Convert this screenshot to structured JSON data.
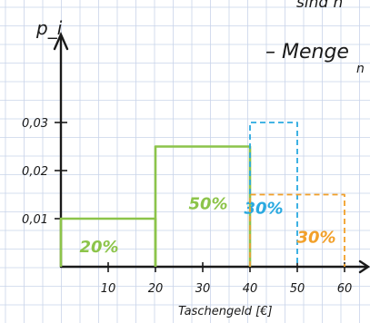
{
  "notes": {
    "line1": "sind n",
    "line2": "– Menge",
    "line3": "n"
  },
  "colors": {
    "axis": "#1a1a1a",
    "grid": "#c9d4ea",
    "green": "#8cc44a",
    "blue": "#29a9e0",
    "orange": "#f2a02a"
  },
  "chart_data": {
    "type": "bar",
    "ylabel": "p_i",
    "xlabel": "Taschengeld [€]",
    "xlim": [
      0,
      62
    ],
    "ylim": [
      0,
      0.035
    ],
    "x_ticks": [
      10,
      20,
      30,
      40,
      50,
      60
    ],
    "y_ticks": [
      {
        "value": 0.01,
        "label": "0,01"
      },
      {
        "value": 0.02,
        "label": "0,02"
      },
      {
        "value": 0.03,
        "label": "0,03"
      }
    ],
    "bars": [
      {
        "x0": 0,
        "x1": 20,
        "height": 0.01,
        "label": "20%",
        "color": "green",
        "style": "solid"
      },
      {
        "x0": 20,
        "x1": 40,
        "height": 0.025,
        "label": "50%",
        "color": "green",
        "style": "solid"
      },
      {
        "x0": 40,
        "x1": 50,
        "height": 0.03,
        "label": "30%",
        "color": "blue",
        "style": "dashed"
      },
      {
        "x0": 40,
        "x1": 60,
        "height": 0.015,
        "label": "30%",
        "color": "orange",
        "style": "dashed"
      }
    ]
  }
}
